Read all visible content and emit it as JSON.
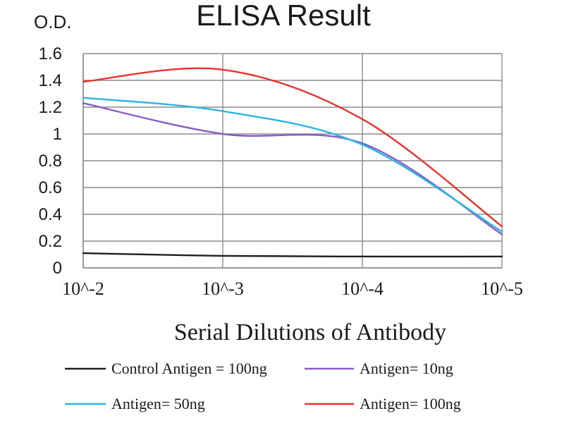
{
  "chart_data": {
    "type": "line",
    "title": "ELISA Result",
    "ylabel": "O.D.",
    "xlabel": "Serial Dilutions  of Antibody",
    "x": [
      "10^-2",
      "10^-3",
      "10^-4",
      "10^-5"
    ],
    "x_tick_labels": [
      "10^-2",
      "10^-3",
      "10^-4",
      "10^-5"
    ],
    "y_ticks": [
      "0",
      "0.2",
      "0.4",
      "0.6",
      "0.8",
      "1",
      "1.2",
      "1.4",
      "1.6"
    ],
    "ylim": [
      0,
      1.6
    ],
    "grid": true,
    "legend_position": "bottom",
    "series": [
      {
        "name": "Control Antigen = 100ng",
        "color": "#1f1f1f",
        "values": [
          0.11,
          0.09,
          0.085,
          0.085
        ]
      },
      {
        "name": "Antigen= 10ng",
        "color": "#8a5cc7",
        "values": [
          1.23,
          1.0,
          0.93,
          0.25
        ]
      },
      {
        "name": "Antigen= 50ng",
        "color": "#2bb5e0",
        "values": [
          1.27,
          1.17,
          0.92,
          0.27
        ]
      },
      {
        "name": "Antigen= 100ng",
        "color": "#e8332d",
        "values": [
          1.39,
          1.48,
          1.11,
          0.31
        ]
      }
    ]
  }
}
